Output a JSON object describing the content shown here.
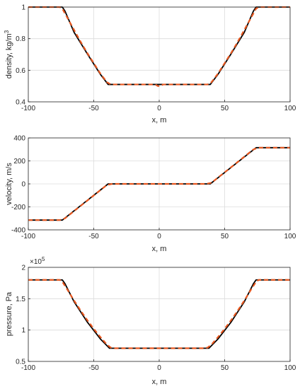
{
  "chart_data": [
    {
      "type": "line",
      "xlabel": "x, m",
      "ylabel": "density, kg/m",
      "ylabel_sup": "3",
      "xlim": [
        -100,
        100
      ],
      "ylim": [
        0.4,
        1
      ],
      "xticks": [
        -100,
        -50,
        0,
        50,
        100
      ],
      "yticks": [
        0.4,
        0.6,
        0.8,
        1
      ],
      "ytick_labels": [
        "0.4",
        "0.6",
        "0.8",
        "1"
      ],
      "grid": true,
      "series": [
        {
          "style": "solid",
          "color": "#000000",
          "x": [
            -100,
            -74,
            -72,
            -65,
            -55,
            -45,
            -39,
            0,
            39,
            45,
            55,
            65,
            72,
            74,
            100
          ],
          "y": [
            1,
            1,
            0.975,
            0.84,
            0.705,
            0.575,
            0.51,
            0.51,
            0.51,
            0.575,
            0.705,
            0.84,
            0.975,
            1,
            1
          ]
        },
        {
          "style": "dashed",
          "color": "#e8571f",
          "x": [
            -100,
            -76,
            -74,
            -70,
            -65,
            -60,
            -55,
            -50,
            -45,
            -40,
            -37,
            -34,
            -3,
            -1,
            1,
            3,
            34,
            37,
            40,
            45,
            50,
            55,
            60,
            65,
            70,
            74,
            76,
            100
          ],
          "y": [
            1,
            1,
            0.99,
            0.93,
            0.855,
            0.78,
            0.71,
            0.645,
            0.58,
            0.525,
            0.51,
            0.51,
            0.51,
            0.5,
            0.5,
            0.51,
            0.51,
            0.51,
            0.525,
            0.58,
            0.645,
            0.71,
            0.78,
            0.855,
            0.93,
            0.99,
            1,
            1
          ]
        }
      ]
    },
    {
      "type": "line",
      "xlabel": "x, m",
      "ylabel": "velocity, m/s",
      "xlim": [
        -100,
        100
      ],
      "ylim": [
        -400,
        400
      ],
      "xticks": [
        -100,
        -50,
        0,
        50,
        100
      ],
      "yticks": [
        -400,
        -200,
        0,
        200,
        400
      ],
      "ytick_labels": [
        "-400",
        "-200",
        "0",
        "200",
        "400"
      ],
      "grid": true,
      "series": [
        {
          "style": "solid",
          "color": "#000000",
          "x": [
            -100,
            -74,
            -39,
            0,
            39,
            74,
            100
          ],
          "y": [
            -315,
            -315,
            0,
            0,
            0,
            315,
            315
          ]
        },
        {
          "style": "dashed",
          "color": "#e8571f",
          "x": [
            -100,
            -76,
            -72,
            -40,
            -36,
            0,
            36,
            40,
            72,
            76,
            100
          ],
          "y": [
            -315,
            -315,
            -300,
            -10,
            0,
            0,
            0,
            10,
            300,
            315,
            315
          ]
        }
      ]
    },
    {
      "type": "line",
      "xlabel": "x, m",
      "ylabel": "pressure, Pa",
      "exponent_base": "×10",
      "exponent_power": "5",
      "xlim": [
        -100,
        100
      ],
      "ylim": [
        0.5,
        2
      ],
      "xticks": [
        -100,
        -50,
        0,
        50,
        100
      ],
      "yticks": [
        0.5,
        1,
        1.5,
        2
      ],
      "ytick_labels": [
        "0.5",
        "1",
        "1.5",
        "2"
      ],
      "grid": true,
      "series": [
        {
          "style": "solid",
          "color": "#000000",
          "x": [
            -100,
            -74,
            -72,
            -65,
            -55,
            -45,
            -38,
            0,
            38,
            45,
            55,
            65,
            72,
            74,
            100
          ],
          "y": [
            1.8,
            1.8,
            1.74,
            1.45,
            1.13,
            0.86,
            0.71,
            0.71,
            0.71,
            0.86,
            1.13,
            1.45,
            1.74,
            1.8,
            1.8
          ]
        },
        {
          "style": "dashed",
          "color": "#e8571f",
          "x": [
            -100,
            -76,
            -74,
            -70,
            -65,
            -60,
            -55,
            -50,
            -45,
            -40,
            -37,
            -34,
            0,
            34,
            37,
            40,
            45,
            50,
            55,
            60,
            65,
            70,
            74,
            76,
            100
          ],
          "y": [
            1.8,
            1.8,
            1.77,
            1.64,
            1.47,
            1.31,
            1.16,
            1.02,
            0.89,
            0.77,
            0.72,
            0.71,
            0.71,
            0.71,
            0.72,
            0.77,
            0.89,
            1.02,
            1.16,
            1.31,
            1.47,
            1.64,
            1.77,
            1.8,
            1.8
          ]
        }
      ]
    }
  ]
}
